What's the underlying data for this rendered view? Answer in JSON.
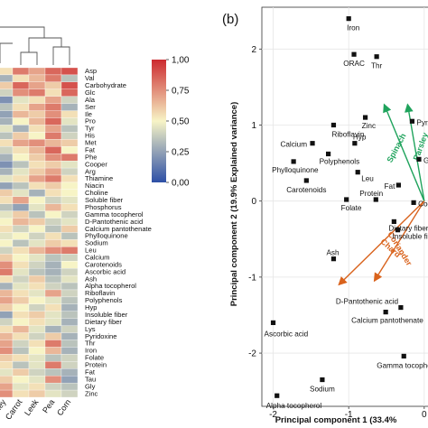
{
  "panel_b_label": "(b)",
  "colorbar": {
    "ticks": [
      "1,00",
      "0,75",
      "0,50",
      "0,25",
      "0,00"
    ],
    "tick_values": [
      1.0,
      0.75,
      0.5,
      0.25,
      0.0
    ],
    "colors": {
      "high": "#cc2a2f",
      "mid": "#f7f4c6",
      "low": "#2d4fa6"
    }
  },
  "chart_data": [
    {
      "type": "heatmap",
      "panel": "a",
      "rows": [
        "Asp",
        "Val",
        "Carbohydrate",
        "Glc",
        "Ala",
        "Ser",
        "Ile",
        "Pro",
        "Tyr",
        "His",
        "Met",
        "Fat",
        "Phe",
        "Cooper",
        "Arg",
        "Thiamine",
        "Niacin",
        "Choline",
        "Soluble fiber",
        "Phosphorus",
        "Gamma tocopherol",
        "D-Pantothenic acid",
        "Calcium pantothenate",
        "Phylloquinone",
        "Sodium",
        "Leu",
        "Calcium",
        "Carotenoids",
        "Ascorbic acid",
        "Ash",
        "Alpha tocopherol",
        "Riboflavin",
        "Polyphenols",
        "Hyp",
        "Insoluble fiber",
        "Dietary fiber",
        "Lys",
        "Pyridoxine",
        "Thr",
        "Iron",
        "Folate",
        "Protein",
        "Fat",
        "Tau",
        "Gly",
        "Zinc"
      ],
      "columns": [
        "ley",
        "Carrot",
        "Leek",
        "Pea",
        "Corn"
      ],
      "value_range": [
        0,
        1
      ],
      "values": [
        [
          0.55,
          0.8,
          0.7,
          0.85,
          0.9
        ],
        [
          0.3,
          0.55,
          0.65,
          0.8,
          0.35
        ],
        [
          0.6,
          0.85,
          0.7,
          0.6,
          0.9
        ],
        [
          0.4,
          0.75,
          0.8,
          0.55,
          0.85
        ],
        [
          0.2,
          0.45,
          0.55,
          0.7,
          0.4
        ],
        [
          0.35,
          0.55,
          0.7,
          0.8,
          0.3
        ],
        [
          0.25,
          0.65,
          0.6,
          0.75,
          0.55
        ],
        [
          0.3,
          0.5,
          0.65,
          0.85,
          0.45
        ],
        [
          0.45,
          0.3,
          0.55,
          0.7,
          0.35
        ],
        [
          0.35,
          0.6,
          0.5,
          0.8,
          0.4
        ],
        [
          0.55,
          0.7,
          0.75,
          0.65,
          0.6
        ],
        [
          0.4,
          0.55,
          0.65,
          0.85,
          0.5
        ],
        [
          0.3,
          0.5,
          0.6,
          0.75,
          0.8
        ],
        [
          0.2,
          0.35,
          0.55,
          0.6,
          0.45
        ],
        [
          0.3,
          0.45,
          0.6,
          0.7,
          0.4
        ],
        [
          0.45,
          0.55,
          0.7,
          0.8,
          0.55
        ],
        [
          0.25,
          0.35,
          0.55,
          0.6,
          0.5
        ],
        [
          0.6,
          0.45,
          0.3,
          0.55,
          0.5
        ],
        [
          0.55,
          0.7,
          0.5,
          0.4,
          0.45
        ],
        [
          0.35,
          0.25,
          0.45,
          0.65,
          0.55
        ],
        [
          0.45,
          0.6,
          0.35,
          0.5,
          0.4
        ],
        [
          0.5,
          0.65,
          0.6,
          0.4,
          0.45
        ],
        [
          0.55,
          0.4,
          0.5,
          0.35,
          0.6
        ],
        [
          0.45,
          0.5,
          0.4,
          0.55,
          0.35
        ],
        [
          0.5,
          0.35,
          0.45,
          0.6,
          0.55
        ],
        [
          0.4,
          0.55,
          0.65,
          0.75,
          0.8
        ],
        [
          0.6,
          0.5,
          0.45,
          0.35,
          0.4
        ],
        [
          0.75,
          0.55,
          0.4,
          0.3,
          0.5
        ],
        [
          0.8,
          0.45,
          0.35,
          0.3,
          0.4
        ],
        [
          0.55,
          0.4,
          0.6,
          0.35,
          0.45
        ],
        [
          0.3,
          0.45,
          0.55,
          0.4,
          0.35
        ],
        [
          0.65,
          0.55,
          0.45,
          0.7,
          0.4
        ],
        [
          0.7,
          0.6,
          0.5,
          0.45,
          0.35
        ],
        [
          0.6,
          0.5,
          0.4,
          0.55,
          0.3
        ],
        [
          0.25,
          0.55,
          0.6,
          0.45,
          0.35
        ],
        [
          0.4,
          0.5,
          0.55,
          0.45,
          0.3
        ],
        [
          0.55,
          0.65,
          0.45,
          0.3,
          0.4
        ],
        [
          0.65,
          0.55,
          0.4,
          0.6,
          0.3
        ],
        [
          0.7,
          0.4,
          0.55,
          0.8,
          0.35
        ],
        [
          0.75,
          0.35,
          0.5,
          0.65,
          0.3
        ],
        [
          0.6,
          0.55,
          0.45,
          0.35,
          0.4
        ],
        [
          0.55,
          0.35,
          0.45,
          0.8,
          0.4
        ],
        [
          0.45,
          0.6,
          0.4,
          0.35,
          0.3
        ],
        [
          0.6,
          0.5,
          0.45,
          0.75,
          0.25
        ],
        [
          0.7,
          0.45,
          0.55,
          0.4,
          0.35
        ],
        [
          0.75,
          0.55,
          0.6,
          0.45,
          0.4
        ]
      ]
    },
    {
      "type": "scatter",
      "panel": "b",
      "xlabel": "Principal component 1 (33.4%",
      "ylabel": "Principal component 2 (19.9% Explained variance)",
      "xlim": [
        -2.15,
        0.05
      ],
      "ylim": [
        -2.7,
        2.55
      ],
      "xticks": [
        "-2",
        "-1",
        "0"
      ],
      "xtick_values": [
        -2,
        -1,
        0
      ],
      "yticks": [
        "2",
        "1",
        "0",
        "-1",
        "-2"
      ],
      "ytick_values": [
        2,
        1,
        0,
        -1,
        -2
      ],
      "grid": true,
      "points": [
        {
          "label": "Iron",
          "x": -1.0,
          "y": 2.4
        },
        {
          "label": "ORAC",
          "x": -0.93,
          "y": 1.93
        },
        {
          "label": "Thr",
          "x": -0.63,
          "y": 1.9
        },
        {
          "label": "Riboflavin",
          "x": -1.2,
          "y": 1.0
        },
        {
          "label": "Calcium",
          "x": -1.48,
          "y": 0.76
        },
        {
          "label": "Polyphenols",
          "x": -1.27,
          "y": 0.62
        },
        {
          "label": "Phylloquinone",
          "x": -1.73,
          "y": 0.52
        },
        {
          "label": "Carotenoids",
          "x": -1.56,
          "y": 0.27
        },
        {
          "label": "Hyp",
          "x": -0.92,
          "y": 0.76
        },
        {
          "label": "Zinc",
          "x": -0.78,
          "y": 1.1
        },
        {
          "label": "Leu",
          "x": -0.88,
          "y": 0.38
        },
        {
          "label": "Pyridoxine",
          "x": -0.16,
          "y": 1.05
        },
        {
          "label": "Gly",
          "x": -0.07,
          "y": 0.55
        },
        {
          "label": "Fat",
          "x": -0.34,
          "y": 0.21
        },
        {
          "label": "Cooper",
          "x": -0.14,
          "y": -0.02
        },
        {
          "label": "Folate",
          "x": -1.03,
          "y": 0.02
        },
        {
          "label": "Protein",
          "x": -0.64,
          "y": 0.02
        },
        {
          "label": "Dietary fiber",
          "x": -0.4,
          "y": -0.27
        },
        {
          "label": "Insoluble fiber",
          "x": -0.35,
          "y": -0.38
        },
        {
          "label": "Ash",
          "x": -1.2,
          "y": -0.76
        },
        {
          "label": "D-Pantothenic acid",
          "x": -0.31,
          "y": -1.4
        },
        {
          "label": "Calcium pantothenate",
          "x": -0.51,
          "y": -1.46
        },
        {
          "label": "Gamma tocopherol",
          "x": -0.27,
          "y": -2.04
        },
        {
          "label": "Ascorbic acid",
          "x": -2.0,
          "y": -1.6
        },
        {
          "label": "Sodium",
          "x": -1.35,
          "y": -2.35
        },
        {
          "label": "Alpha tocopherol",
          "x": -1.95,
          "y": -2.56
        }
      ],
      "vectors": [
        {
          "label": "Spinach",
          "x": -0.53,
          "y": 1.27,
          "color": "#1fa35c"
        },
        {
          "label": "Parsley",
          "x": -0.22,
          "y": 1.27,
          "color": "#1fa35c"
        },
        {
          "label": "Chard",
          "x": -1.13,
          "y": -1.1,
          "color": "#d9631d"
        },
        {
          "label": "Coriander",
          "x": -0.66,
          "y": -1.05,
          "color": "#d9631d"
        }
      ],
      "vector_origin": [
        0,
        0
      ]
    }
  ]
}
